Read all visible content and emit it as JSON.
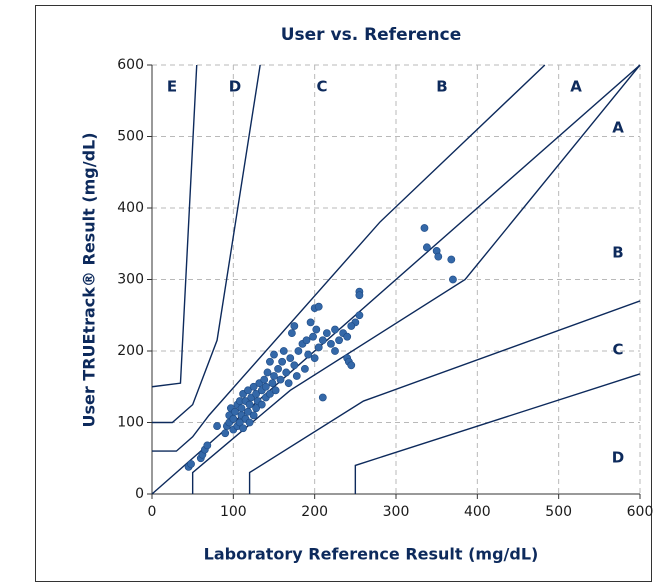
{
  "chart_data": {
    "type": "scatter",
    "title": "User vs. Reference",
    "xlabel": "Laboratory Reference Result (mg/dL)",
    "ylabel": "User TRUEtrack® Result (mg/dL)",
    "xlim": [
      0,
      600
    ],
    "ylim": [
      0,
      600
    ],
    "xticks": [
      0,
      100,
      200,
      300,
      400,
      500,
      600
    ],
    "yticks": [
      0,
      100,
      200,
      300,
      400,
      500,
      600
    ],
    "grid": true,
    "color": "#3468a8",
    "line_color": "#0d2a5c",
    "zone_labels": [
      "E",
      "D",
      "C",
      "B",
      "A",
      "A",
      "B",
      "C",
      "D"
    ],
    "lines": [
      {
        "x": [
          0,
          35,
          55
        ],
        "y": [
          150,
          155,
          600
        ]
      },
      {
        "x": [
          0,
          25,
          50,
          80,
          133
        ],
        "y": [
          100,
          100,
          125,
          215,
          600
        ]
      },
      {
        "x": [
          0,
          30,
          50,
          70,
          280,
          483
        ],
        "y": [
          60,
          60,
          80,
          110,
          380,
          600
        ]
      },
      {
        "x": [
          0,
          600
        ],
        "y": [
          0,
          600
        ]
      },
      {
        "x": [
          50,
          50,
          170,
          385,
          600
        ],
        "y": [
          0,
          30,
          145,
          300,
          600
        ]
      },
      {
        "x": [
          120,
          120,
          260,
          600
        ],
        "y": [
          0,
          30,
          130,
          270
        ]
      },
      {
        "x": [
          250,
          250,
          600
        ],
        "y": [
          0,
          40,
          168
        ]
      }
    ],
    "x": [
      90,
      92,
      95,
      95,
      97,
      100,
      100,
      102,
      105,
      105,
      108,
      108,
      110,
      110,
      112,
      112,
      115,
      115,
      118,
      118,
      120,
      120,
      122,
      125,
      125,
      128,
      128,
      130,
      132,
      135,
      135,
      138,
      140,
      140,
      142,
      145,
      145,
      148,
      150,
      150,
      152,
      155,
      158,
      160,
      162,
      165,
      168,
      170,
      172,
      175,
      175,
      178,
      180,
      185,
      188,
      190,
      192,
      195,
      198,
      200,
      202,
      205,
      210,
      215,
      220,
      225,
      230,
      235,
      240,
      240,
      242,
      250,
      335,
      338,
      350,
      352,
      368,
      370,
      210,
      245,
      255,
      255,
      255,
      245,
      225,
      200,
      205,
      45,
      48,
      60,
      62,
      65,
      68,
      80
    ],
    "y": [
      85,
      95,
      100,
      110,
      120,
      90,
      105,
      115,
      95,
      125,
      100,
      130,
      110,
      120,
      92,
      140,
      105,
      130,
      115,
      145,
      100,
      125,
      135,
      110,
      150,
      120,
      140,
      130,
      155,
      125,
      145,
      160,
      135,
      150,
      170,
      140,
      185,
      155,
      165,
      195,
      145,
      175,
      160,
      185,
      200,
      170,
      155,
      190,
      225,
      180,
      235,
      165,
      200,
      210,
      175,
      215,
      195,
      240,
      220,
      190,
      230,
      205,
      215,
      225,
      210,
      200,
      215,
      225,
      190,
      220,
      185,
      240,
      372,
      345,
      340,
      332,
      328,
      300,
      135,
      180,
      283,
      278,
      250,
      235,
      230,
      260,
      262,
      38,
      42,
      50,
      55,
      62,
      68,
      95
    ]
  }
}
